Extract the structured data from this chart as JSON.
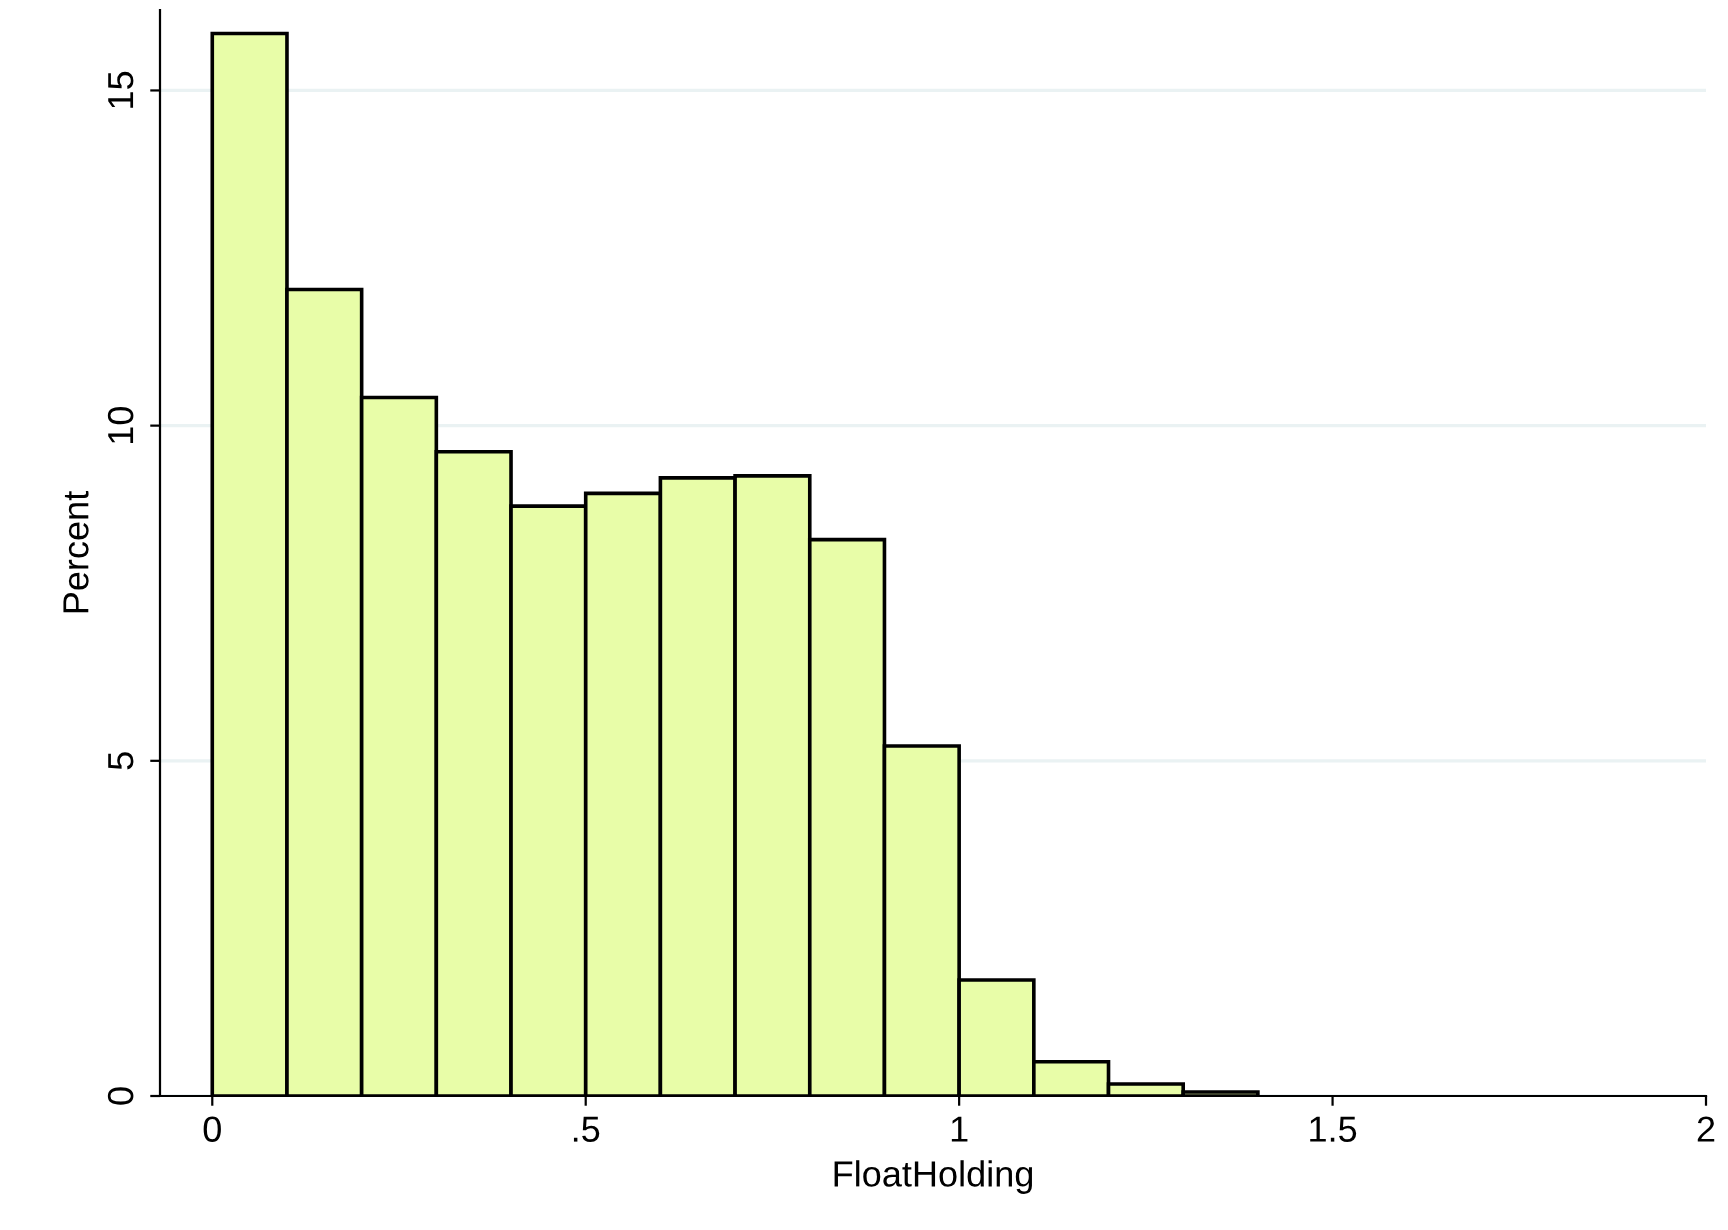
{
  "chart_data": {
    "type": "histogram",
    "xlabel": "FloatHolding",
    "ylabel": "Percent",
    "bins": [
      0,
      0.1,
      0.2,
      0.3,
      0.4,
      0.5,
      0.6,
      0.7,
      0.8,
      0.9,
      1.0,
      1.1,
      1.2,
      1.3,
      1.4,
      1.5,
      1.6,
      1.7,
      1.8,
      1.9,
      2.0
    ],
    "values": [
      15.85,
      12.03,
      10.42,
      9.61,
      8.8,
      8.99,
      9.22,
      9.25,
      8.3,
      5.22,
      1.73,
      0.51,
      0.18,
      0.06,
      null,
      null,
      null,
      null,
      null,
      null
    ],
    "color": "#e8fda8",
    "xlim": [
      -0.07,
      2.0
    ],
    "ylim": [
      0,
      16.2
    ],
    "xticks": [
      0,
      {
        "value": 0.5,
        "label": ".5"
      },
      1,
      1.5,
      2
    ],
    "yticks": [
      0,
      5,
      10,
      15
    ],
    "grid": "y"
  }
}
